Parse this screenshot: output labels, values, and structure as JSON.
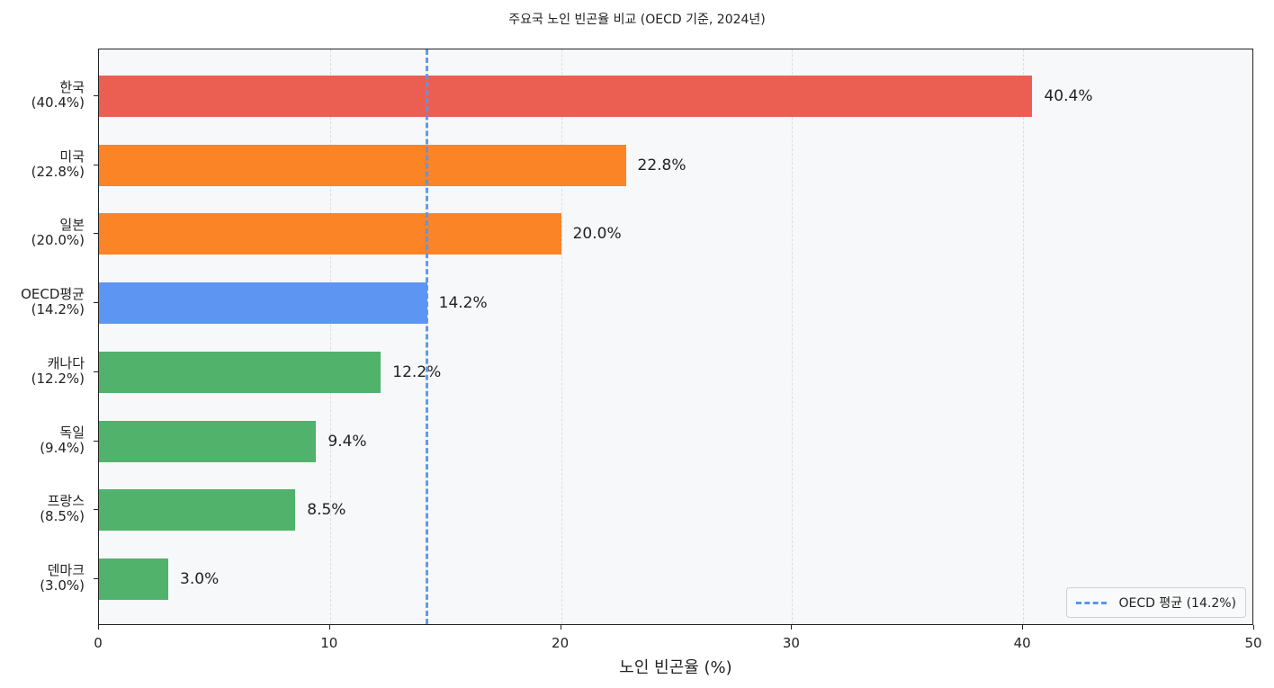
{
  "chart_data": {
    "type": "bar",
    "orientation": "horizontal",
    "title": "주요국 노인 빈곤율 비교 (OECD 기준, 2024년)",
    "xlabel": "노인 빈곤율 (%)",
    "ylabel": "",
    "xlim": [
      0,
      50
    ],
    "xticks": [
      "0",
      "10",
      "20",
      "30",
      "40",
      "50"
    ],
    "grid": "x dashed",
    "categories": [
      "한국",
      "미국",
      "일본",
      "OECD평균",
      "캐나다",
      "독일",
      "프랑스",
      "덴마크"
    ],
    "category_labels": [
      "한국\n(40.4%)",
      "미국\n(22.8%)",
      "일본\n(20.0%)",
      "OECD평균\n(14.2%)",
      "캐나다\n(12.2%)",
      "독일\n(9.4%)",
      "프랑스\n(8.5%)",
      "덴마크\n(3.0%)"
    ],
    "values": [
      40.4,
      22.8,
      20.0,
      14.2,
      12.2,
      9.4,
      8.5,
      3.0
    ],
    "value_labels": [
      "40.4%",
      "22.8%",
      "20.0%",
      "14.2%",
      "12.2%",
      "9.4%",
      "8.5%",
      "3.0%"
    ],
    "colors": [
      "#eb5f53",
      "#fb8426",
      "#fb8426",
      "#5d96f2",
      "#51b36b",
      "#51b36b",
      "#51b36b",
      "#51b36b"
    ],
    "reference_line": {
      "x": 14.2,
      "style": "dashed",
      "color": "#5b95ee",
      "label": "OECD 평균 (14.2%)"
    },
    "legend": {
      "position": "lower right",
      "entries": [
        "OECD 평균 (14.2%)"
      ]
    }
  }
}
